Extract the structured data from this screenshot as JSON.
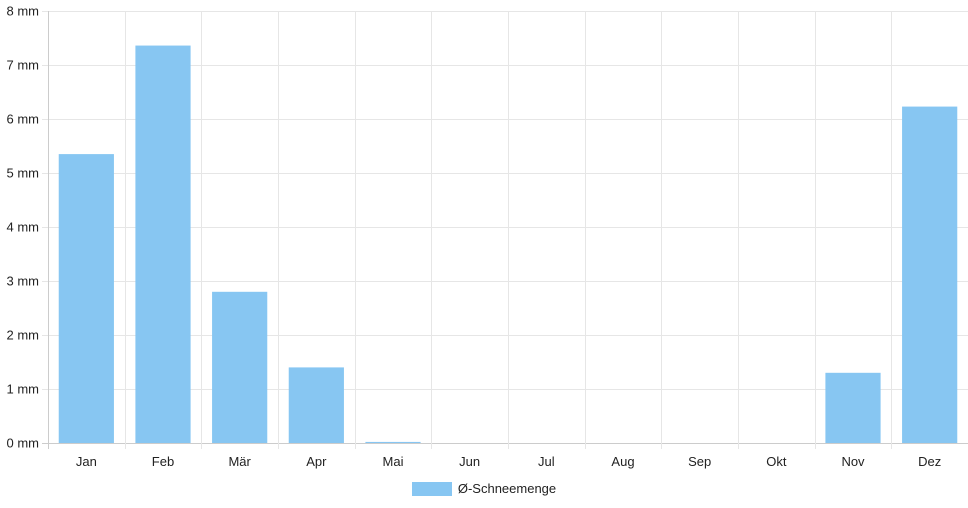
{
  "chart_data": {
    "type": "bar",
    "categories": [
      "Jan",
      "Feb",
      "Mär",
      "Apr",
      "Mai",
      "Jun",
      "Jul",
      "Aug",
      "Sep",
      "Okt",
      "Nov",
      "Dez"
    ],
    "series": [
      {
        "name": "Ø-Schneemenge",
        "values": [
          5.35,
          7.36,
          2.8,
          1.4,
          0.02,
          0,
          0,
          0,
          0,
          0,
          1.3,
          6.23
        ]
      }
    ],
    "ylim": [
      0,
      8
    ],
    "yticks": [
      "0 mm",
      "1 mm",
      "2 mm",
      "3 mm",
      "4 mm",
      "5 mm",
      "6 mm",
      "7 mm",
      "8 mm"
    ],
    "unit": "mm",
    "grid": true,
    "legend_position": "bottom",
    "colors": {
      "bar": "#87c6f2",
      "grid": "#e6e6e6",
      "axis": "#cccccc",
      "text": "#222222"
    }
  },
  "legend": {
    "label": "Ø-Schneemenge"
  }
}
